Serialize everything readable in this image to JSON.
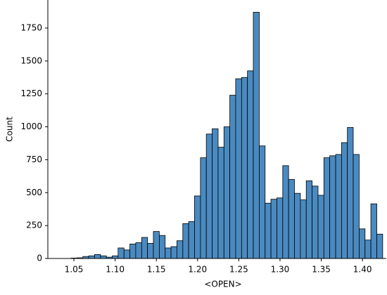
{
  "chart_data": {
    "type": "histogram",
    "xlabel": "<OPEN>",
    "ylabel": "Count",
    "bins": [
      1.0466,
      1.0537,
      1.0609,
      1.068,
      1.0751,
      1.0823,
      1.0894,
      1.0965,
      1.1036,
      1.1108,
      1.1179,
      1.125,
      1.1322,
      1.1393,
      1.1464,
      1.1536,
      1.1607,
      1.1678,
      1.1749,
      1.1821,
      1.1892,
      1.1963,
      1.2035,
      1.2106,
      1.2177,
      1.2249,
      1.232,
      1.2391,
      1.2462,
      1.2534,
      1.2605,
      1.2676,
      1.2748,
      1.2819,
      1.289,
      1.2962,
      1.3033,
      1.3104,
      1.3175,
      1.3247,
      1.3318,
      1.3389,
      1.3461,
      1.3532,
      1.3603,
      1.3675,
      1.3746,
      1.3817,
      1.3888,
      1.396,
      1.4031,
      1.4102,
      1.4174,
      1.4245
    ],
    "values": [
      3,
      5,
      15,
      20,
      30,
      20,
      10,
      20,
      80,
      65,
      110,
      120,
      160,
      115,
      205,
      175,
      80,
      90,
      135,
      265,
      280,
      475,
      765,
      945,
      985,
      845,
      1000,
      1240,
      1365,
      1375,
      1425,
      1870,
      855,
      420,
      450,
      460,
      705,
      600,
      495,
      445,
      590,
      550,
      480,
      765,
      780,
      790,
      880,
      995,
      790,
      225,
      140,
      415,
      185
    ],
    "color": "#4a8ac0",
    "xlim": [
      1.0184,
      1.4289
    ],
    "ylim": [
      0,
      1963
    ],
    "xticks": [
      1.05,
      {
        "value": 1.1,
        "label": "1.10"
      },
      1.15,
      {
        "value": 1.2,
        "label": "1.20"
      },
      1.25,
      {
        "value": 1.3,
        "label": "1.30"
      },
      1.35,
      {
        "value": 1.4,
        "label": "1.40"
      }
    ],
    "yticks": [
      0,
      250,
      500,
      750,
      1000,
      1250,
      1500,
      1750
    ]
  }
}
